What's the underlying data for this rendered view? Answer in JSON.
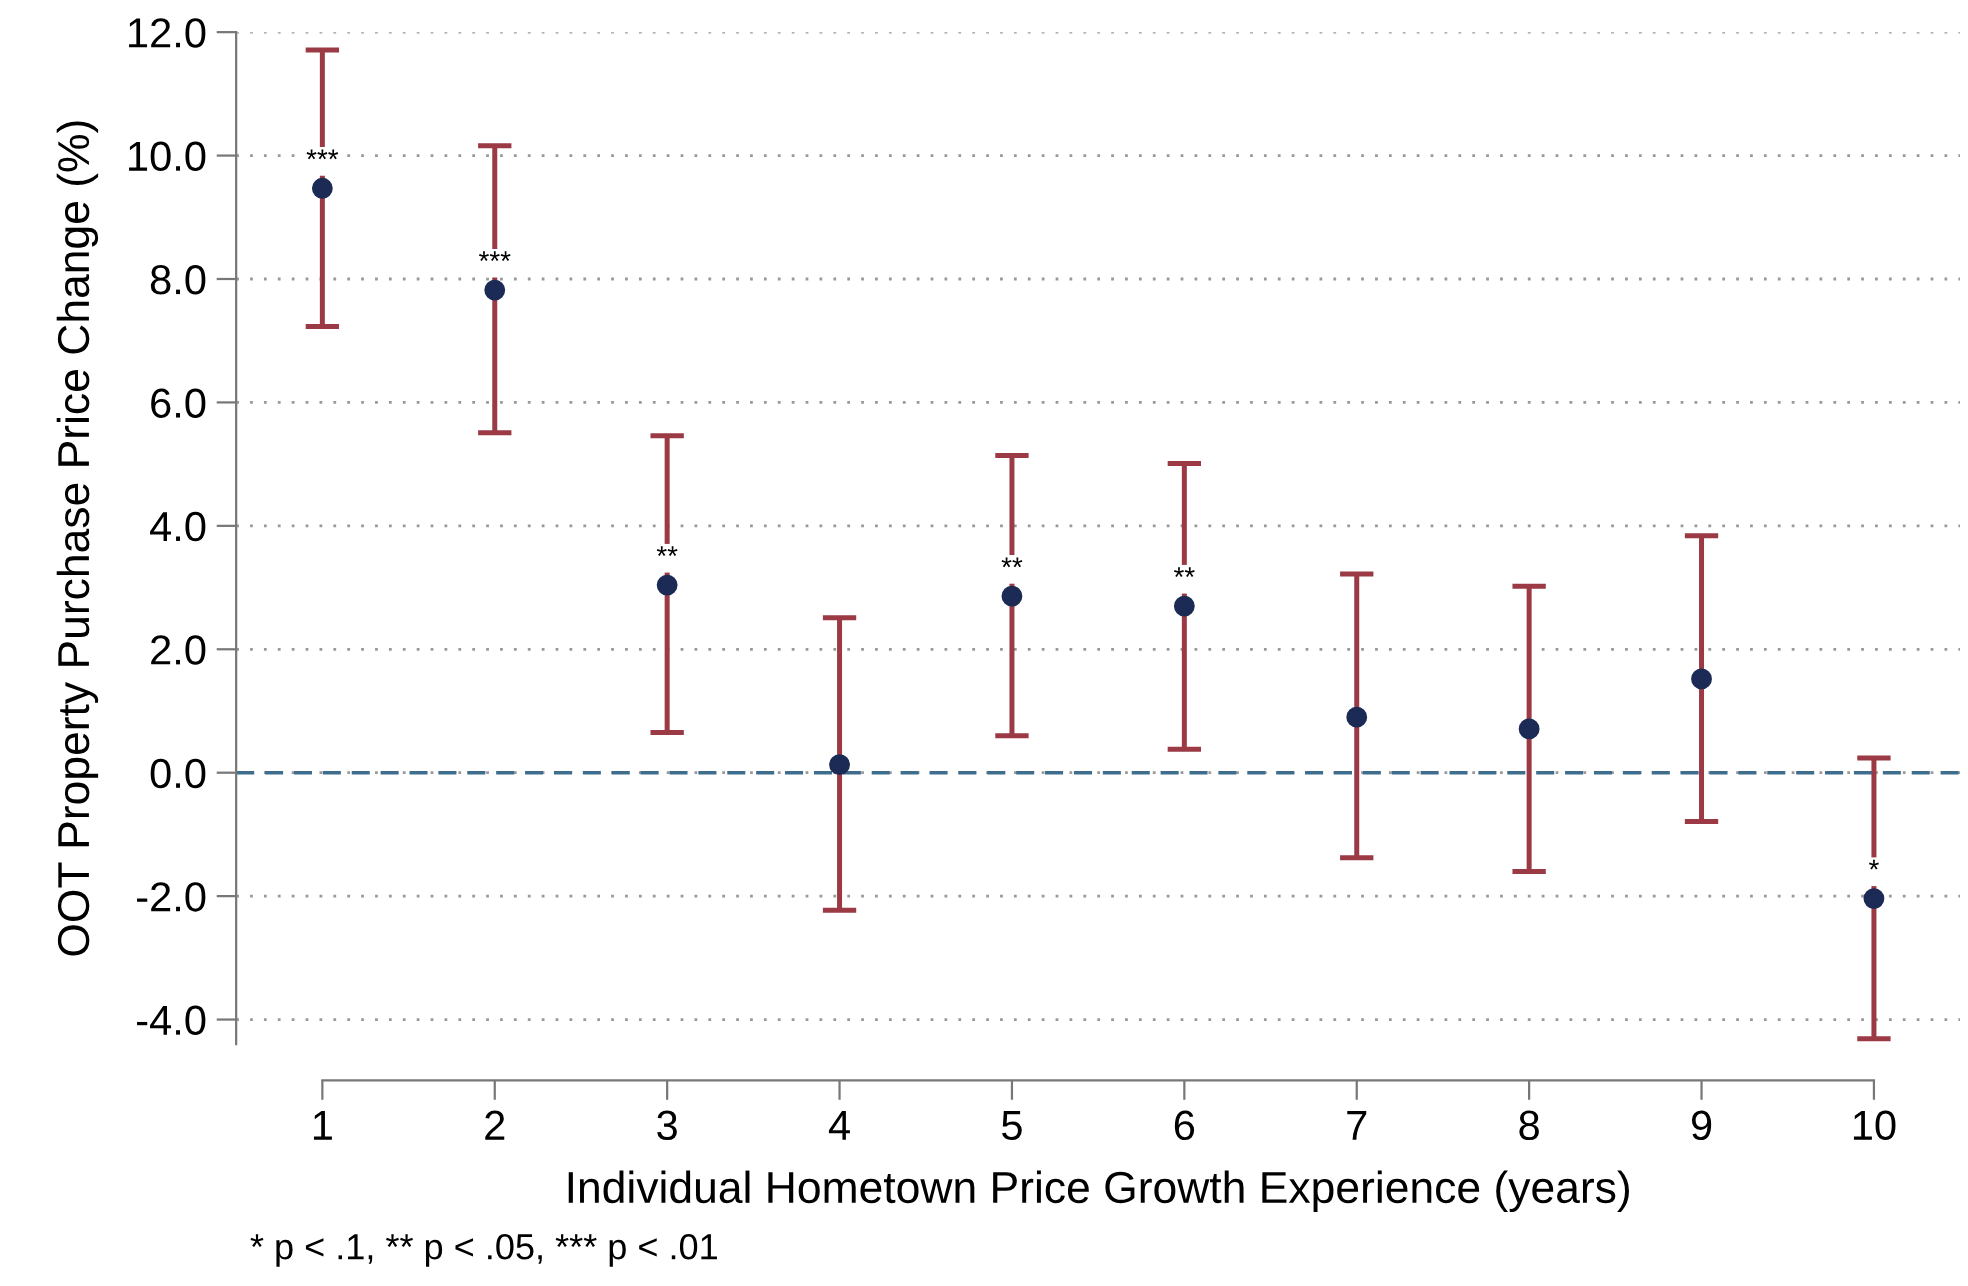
{
  "chart_data": {
    "type": "scatter",
    "xlabel": "Individual Hometown Price Growth Experience (years)",
    "ylabel": "OOT Property Purchase Price Change (%)",
    "x": [
      1,
      2,
      3,
      4,
      5,
      6,
      7,
      8,
      9,
      10
    ],
    "series": [
      {
        "color": "#1c2b55",
        "values": [
          9.47,
          7.82,
          3.04,
          0.13,
          2.86,
          2.7,
          0.9,
          0.71,
          1.52,
          -2.04
        ],
        "errors": [
          [
            7.23,
            11.71
          ],
          [
            5.51,
            10.16
          ],
          [
            0.65,
            5.46
          ],
          [
            -2.23,
            2.51
          ],
          [
            0.6,
            5.14
          ],
          [
            0.38,
            5.01
          ],
          [
            -1.38,
            3.22
          ],
          [
            -1.6,
            3.02
          ],
          [
            -0.79,
            3.84
          ],
          [
            -4.31,
            0.24
          ]
        ]
      }
    ],
    "marker": "circle",
    "legend": false,
    "grid": "y",
    "xlim": [
      0.5,
      10.5
    ],
    "xticks": [
      1,
      2,
      3,
      4,
      5,
      6,
      7,
      8,
      9,
      10
    ],
    "ylim": [
      -4.4,
      12
    ],
    "yticks": [
      {
        "value": -4,
        "label": "-4.0"
      },
      {
        "value": -2,
        "label": "-2.0"
      },
      {
        "value": 0,
        "label": "0.0"
      },
      {
        "value": 2,
        "label": "2.0"
      },
      {
        "value": 4,
        "label": "4.0"
      },
      {
        "value": 6,
        "label": "6.0"
      },
      {
        "value": 8,
        "label": "8.0"
      },
      {
        "value": 10,
        "label": "10.0"
      },
      {
        "value": 12,
        "label": "12.0"
      }
    ],
    "ref_lines": [
      {
        "axis": "y",
        "value": 0,
        "color": "#3e6d8e",
        "line_style": "dashed"
      }
    ],
    "annotations": [
      {
        "text": "***",
        "x": 1,
        "y": 9.47
      },
      {
        "text": "***",
        "x": 2,
        "y": 7.82
      },
      {
        "text": "**",
        "x": 3,
        "y": 3.04
      },
      {
        "text": "**",
        "x": 5,
        "y": 2.86
      },
      {
        "text": "**",
        "x": 6,
        "y": 2.7
      },
      {
        "text": "*",
        "x": 10,
        "y": -2.04
      },
      "* p < .1, ** p < .05, *** p < .01"
    ]
  }
}
